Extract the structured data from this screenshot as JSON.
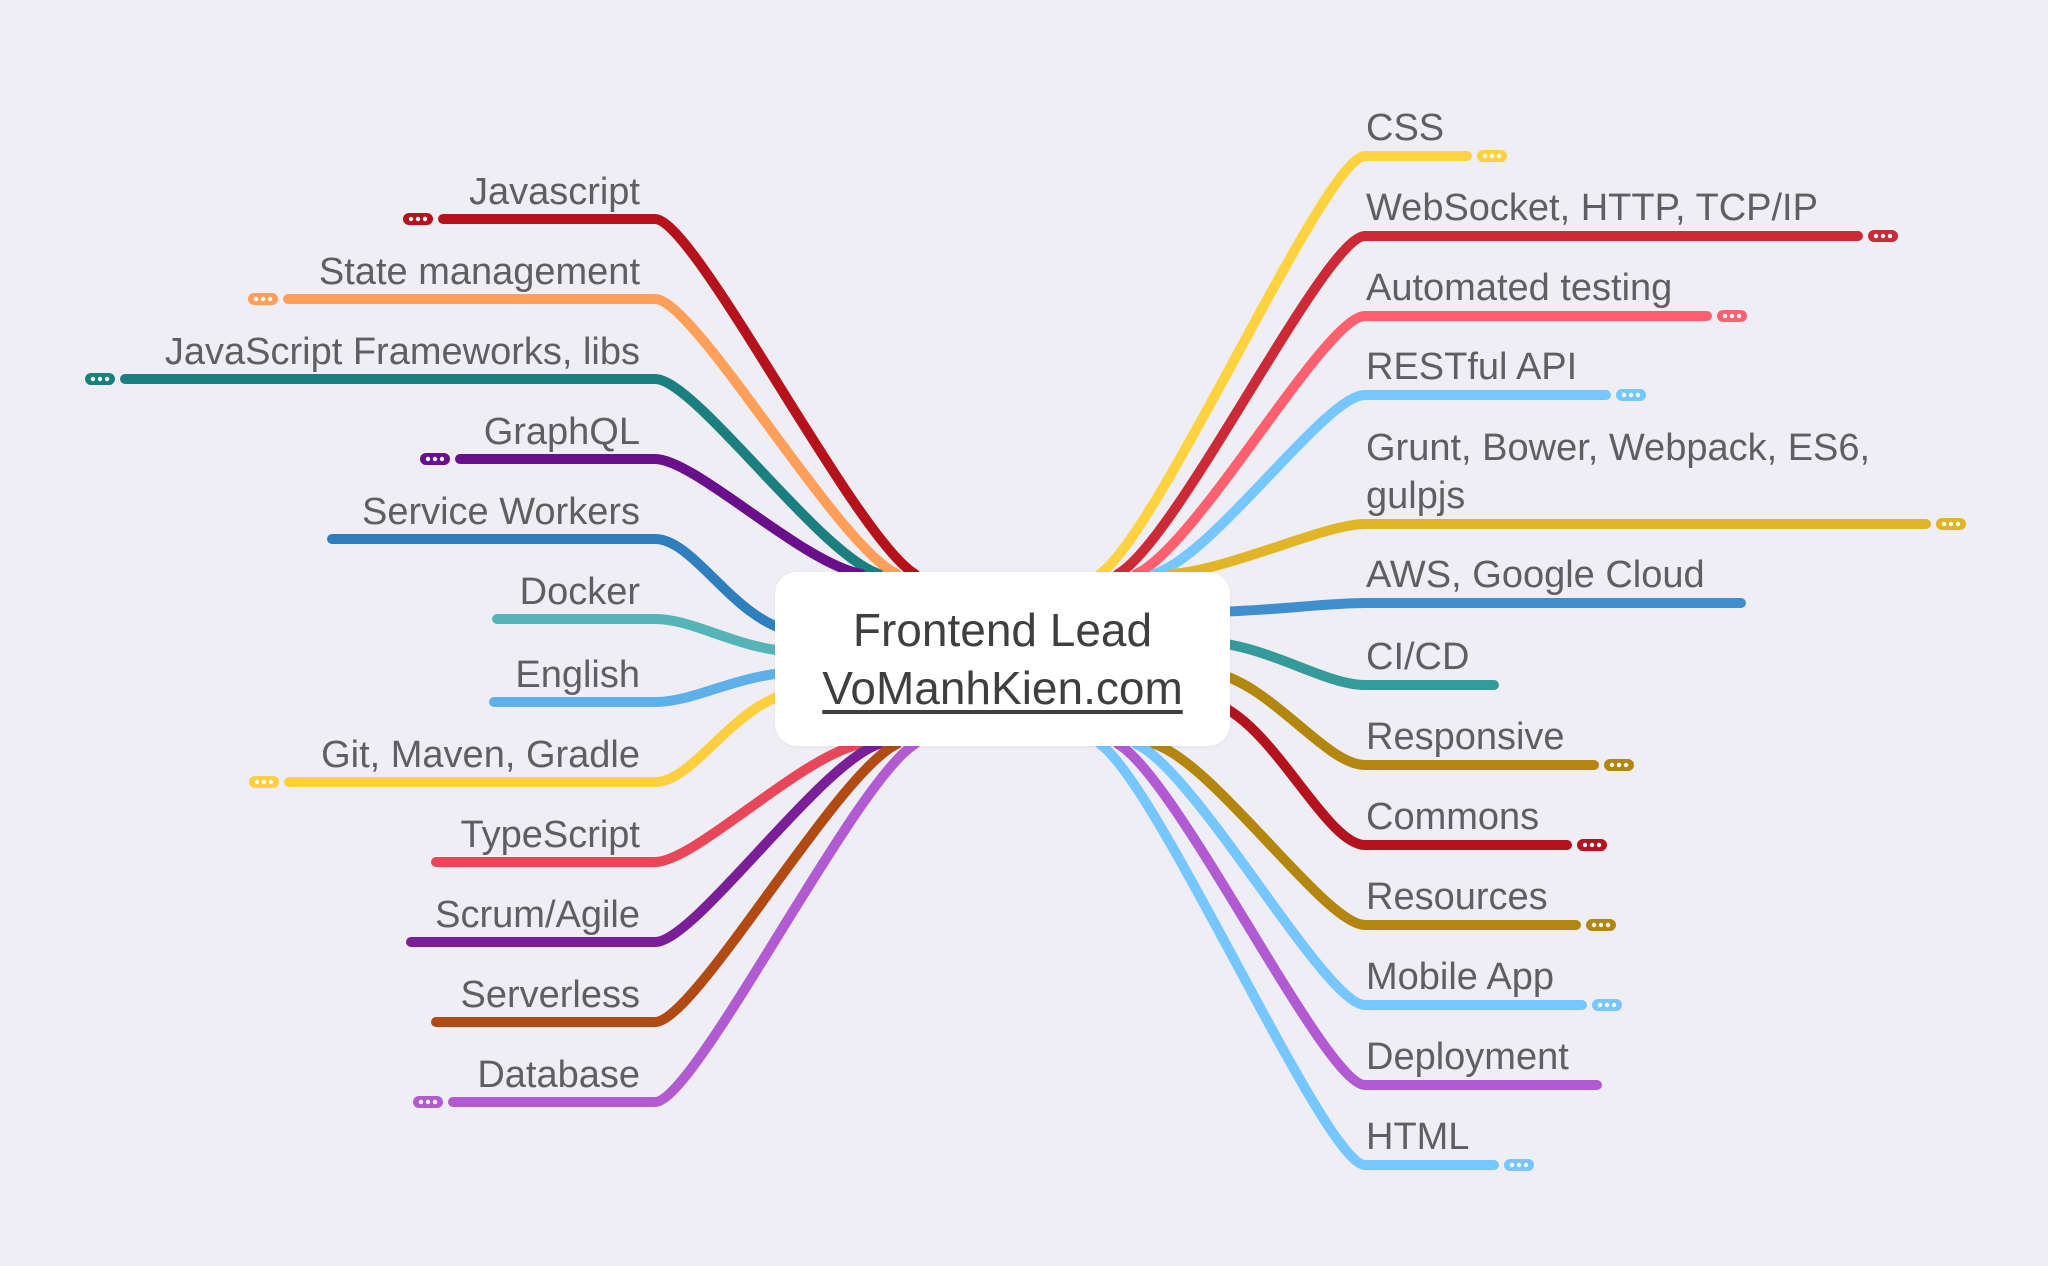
{
  "root": {
    "title": "Frontend Lead",
    "link": "VoManhKien.com"
  },
  "left_branches": [
    {
      "label": "Javascript",
      "color": "#b5121b",
      "collapsed": true
    },
    {
      "label": "State management",
      "color": "#ff9f5a",
      "collapsed": true
    },
    {
      "label": "JavaScript Frameworks, libs",
      "color": "#1b7f7f",
      "collapsed": true
    },
    {
      "label": "GraphQL",
      "color": "#6a0f8c",
      "collapsed": true
    },
    {
      "label": "Service Workers",
      "color": "#2f7fbf",
      "collapsed": false
    },
    {
      "label": "Docker",
      "color": "#54b4b8",
      "collapsed": false
    },
    {
      "label": "English",
      "color": "#5db0ea",
      "collapsed": false
    },
    {
      "label": "Git, Maven, Gradle",
      "color": "#ffcf3f",
      "collapsed": true
    },
    {
      "label": "TypeScript",
      "color": "#e8475a",
      "collapsed": false
    },
    {
      "label": "Scrum/Agile",
      "color": "#7b1f99",
      "collapsed": false
    },
    {
      "label": "Serverless",
      "color": "#b24a14",
      "collapsed": false
    },
    {
      "label": "Database",
      "color": "#b25ad2",
      "collapsed": true
    }
  ],
  "right_branches": [
    {
      "label": "CSS",
      "color": "#ffd23f",
      "collapsed": true
    },
    {
      "label": "WebSocket, HTTP, TCP/IP",
      "color": "#cc2a36",
      "collapsed": true
    },
    {
      "label": "Automated testing",
      "color": "#ff6070",
      "collapsed": true
    },
    {
      "label": "RESTful API",
      "color": "#76c7ff",
      "collapsed": true
    },
    {
      "label": "Grunt, Bower, Webpack, ES6, gulpjs",
      "color": "#e2b427",
      "collapsed": true
    },
    {
      "label": "AWS, Google Cloud",
      "color": "#3f8fcf",
      "collapsed": false
    },
    {
      "label": "CI/CD",
      "color": "#349a9a",
      "collapsed": false
    },
    {
      "label": "Responsive",
      "color": "#b3870f",
      "collapsed": true
    },
    {
      "label": "Commons",
      "color": "#b3121f",
      "collapsed": true
    },
    {
      "label": "Resources",
      "color": "#b3870f",
      "collapsed": true
    },
    {
      "label": "Mobile App",
      "color": "#76c7ff",
      "collapsed": true
    },
    {
      "label": "Deployment",
      "color": "#b25ad2",
      "collapsed": false
    },
    {
      "label": "HTML",
      "color": "#76c7ff",
      "collapsed": true
    }
  ]
}
